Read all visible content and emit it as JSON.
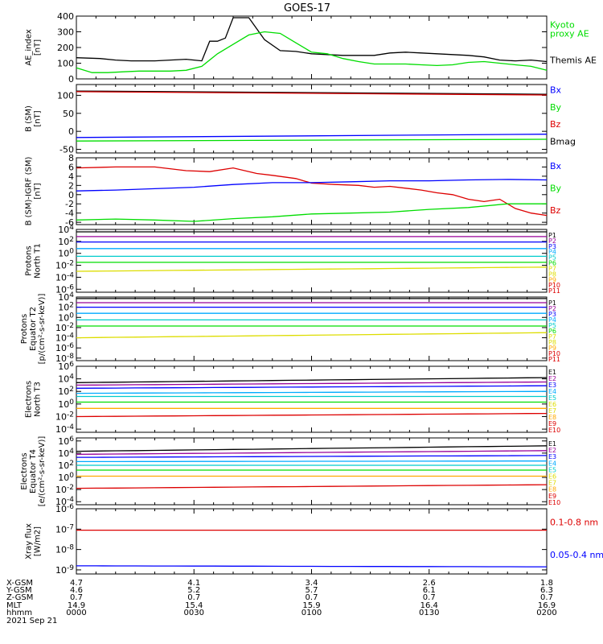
{
  "title": "GOES-17",
  "colors": {
    "black": "#000000",
    "blue": "#0000ff",
    "green": "#00dd00",
    "red": "#dd0000",
    "orange": "#ffaa00",
    "yellow": "#dddd00",
    "cyan": "#00cccc",
    "lightblue": "#00aaff",
    "purple": "#990099"
  },
  "chart_data": [
    {
      "type": "line",
      "panel": "ae",
      "ylabel": "AE_index\n[nT]",
      "yticks": [
        "400",
        "300",
        "200",
        "100",
        "0"
      ],
      "ylim": [
        0,
        400
      ],
      "legend": [
        {
          "text": "Kyoto\nproxy AE",
          "color": "#00dd00"
        },
        {
          "text": "Themis AE",
          "color": "#000000"
        }
      ],
      "series": [
        {
          "name": "Themis AE",
          "color": "#000000",
          "x": [
            0,
            6,
            10,
            14,
            20,
            24,
            28,
            30,
            32,
            34,
            36,
            38,
            40,
            44,
            48,
            52,
            56,
            60,
            64,
            68,
            72,
            76,
            80,
            84,
            88,
            92,
            96,
            100,
            104,
            108,
            112,
            116,
            120
          ],
          "values": [
            135,
            130,
            120,
            115,
            115,
            120,
            125,
            120,
            115,
            240,
            240,
            260,
            390,
            390,
            250,
            180,
            175,
            160,
            155,
            150,
            150,
            150,
            165,
            170,
            165,
            160,
            155,
            150,
            140,
            120,
            115,
            120,
            110
          ]
        },
        {
          "name": "Kyoto proxy AE",
          "color": "#00dd00",
          "x": [
            0,
            4,
            8,
            12,
            16,
            20,
            24,
            28,
            32,
            36,
            40,
            44,
            48,
            52,
            56,
            60,
            64,
            68,
            72,
            76,
            80,
            84,
            88,
            92,
            96,
            100,
            104,
            108,
            112,
            116,
            120
          ],
          "values": [
            70,
            40,
            40,
            45,
            50,
            50,
            50,
            55,
            80,
            160,
            220,
            280,
            300,
            290,
            230,
            170,
            160,
            130,
            110,
            95,
            95,
            95,
            90,
            85,
            90,
            105,
            110,
            100,
            90,
            80,
            55
          ]
        }
      ]
    },
    {
      "type": "line",
      "panel": "bsm",
      "ylabel": "B (SM)\n[nT]",
      "yticks": [
        "100",
        "50",
        "0",
        "-50"
      ],
      "ylim": [
        -60,
        130
      ],
      "legend": [
        {
          "text": "Bx",
          "color": "#0000ff"
        },
        {
          "text": "By",
          "color": "#00dd00"
        },
        {
          "text": "Bz",
          "color": "#dd0000"
        },
        {
          "text": "Bmag",
          "color": "#000000"
        }
      ],
      "series": [
        {
          "name": "Bmag",
          "color": "#000000",
          "x": [
            0,
            120
          ],
          "values": [
            112,
            103
          ]
        },
        {
          "name": "Bz",
          "color": "#dd0000",
          "x": [
            0,
            120
          ],
          "values": [
            110,
            101
          ]
        },
        {
          "name": "Bx",
          "color": "#0000ff",
          "x": [
            0,
            120
          ],
          "values": [
            -17,
            -8
          ]
        },
        {
          "name": "By",
          "color": "#00dd00",
          "x": [
            0,
            120
          ],
          "values": [
            -27,
            -22
          ]
        }
      ]
    },
    {
      "type": "line",
      "panel": "bigrf",
      "ylabel": "B (SM)-IGRF (SM)\n[nT]",
      "yticks": [
        "8",
        "6",
        "4",
        "2",
        "0",
        "-2",
        "-4",
        "-6"
      ],
      "ylim": [
        -6.5,
        8
      ],
      "legend": [
        {
          "text": "Bx",
          "color": "#0000ff"
        },
        {
          "text": "By",
          "color": "#00dd00"
        },
        {
          "text": "Bz",
          "color": "#dd0000"
        }
      ],
      "series": [
        {
          "name": "Bz",
          "color": "#dd0000",
          "x": [
            0,
            10,
            20,
            28,
            34,
            40,
            46,
            50,
            56,
            60,
            66,
            72,
            76,
            80,
            84,
            88,
            92,
            96,
            100,
            104,
            108,
            112,
            116,
            120
          ],
          "values": [
            5.8,
            6.0,
            6.0,
            5.2,
            5.0,
            5.8,
            4.6,
            4.2,
            3.5,
            2.5,
            2.2,
            2.0,
            1.6,
            1.8,
            1.4,
            1.0,
            0.4,
            0.0,
            -1.0,
            -1.5,
            -1.0,
            -3.0,
            -4.0,
            -4.5
          ]
        },
        {
          "name": "Bx",
          "color": "#0000ff",
          "x": [
            0,
            10,
            20,
            30,
            40,
            50,
            60,
            70,
            80,
            90,
            100,
            110,
            120
          ],
          "values": [
            0.8,
            1.0,
            1.3,
            1.6,
            2.2,
            2.6,
            2.6,
            2.8,
            3.0,
            3.0,
            3.2,
            3.3,
            3.2
          ]
        },
        {
          "name": "By",
          "color": "#00dd00",
          "x": [
            0,
            10,
            20,
            30,
            40,
            50,
            60,
            70,
            80,
            90,
            100,
            110,
            120
          ],
          "values": [
            -5.5,
            -5.3,
            -5.5,
            -5.8,
            -5.2,
            -4.8,
            -4.2,
            -4.0,
            -3.8,
            -3.2,
            -2.8,
            -2.0,
            -2.0
          ]
        }
      ]
    },
    {
      "type": "line",
      "panel": "protons_t1",
      "ylabel": "Protons\nNorth T1",
      "yticks": [
        "10^4",
        "10^2",
        "10^0",
        "10^-2",
        "10^-4",
        "10^-6"
      ],
      "ylog": true,
      "ylim": [
        -6.5,
        4
      ],
      "legend": [
        {
          "text": "P1",
          "color": "#000000"
        },
        {
          "text": "P2",
          "color": "#990099"
        },
        {
          "text": "P3",
          "color": "#0000ff"
        },
        {
          "text": "P4",
          "color": "#00aaff"
        },
        {
          "text": "P5",
          "color": "#00cccc"
        },
        {
          "text": "P6",
          "color": "#00dd00"
        },
        {
          "text": "P7",
          "color": "#dddd00"
        },
        {
          "text": "P8",
          "color": "#dddd00"
        },
        {
          "text": "P9",
          "color": "#ffaa00"
        },
        {
          "text": "P10",
          "color": "#dd0000"
        },
        {
          "text": "P11",
          "color": "#dd0000"
        }
      ],
      "series": [
        {
          "name": "P1",
          "color": "#000000",
          "log_values": [
            3.6,
            3.6
          ]
        },
        {
          "name": "P2",
          "color": "#990099",
          "log_values": [
            2.8,
            2.8
          ]
        },
        {
          "name": "P3",
          "color": "#0000ff",
          "log_values": [
            1.9,
            1.9
          ]
        },
        {
          "name": "P4",
          "color": "#00aaff",
          "log_values": [
            0.8,
            0.8
          ]
        },
        {
          "name": "P5",
          "color": "#00cccc",
          "log_values": [
            -0.5,
            -0.5
          ]
        },
        {
          "name": "P6",
          "color": "#00dd00",
          "log_values": [
            -1.5,
            -1.5
          ]
        },
        {
          "name": "P7",
          "color": "#dddd00",
          "log_values": [
            -3.0,
            -2.3
          ]
        }
      ]
    },
    {
      "type": "line",
      "panel": "protons_t2",
      "ylabel": "Protons\nEquator T2\n[p/(cm²-s-sr-keV)]",
      "yticks": [
        "10^4",
        "10^2",
        "10^0",
        "10^-2",
        "10^-4",
        "10^-6",
        "10^-8"
      ],
      "ylog": true,
      "ylim": [
        -8.5,
        4
      ],
      "legend": [
        {
          "text": "P1",
          "color": "#000000"
        },
        {
          "text": "P2",
          "color": "#990099"
        },
        {
          "text": "P3",
          "color": "#0000ff"
        },
        {
          "text": "P4",
          "color": "#00aaff"
        },
        {
          "text": "P5",
          "color": "#00cccc"
        },
        {
          "text": "P6",
          "color": "#00dd00"
        },
        {
          "text": "P7",
          "color": "#dddd00"
        },
        {
          "text": "P8",
          "color": "#dddd00"
        },
        {
          "text": "P9",
          "color": "#ffaa00"
        },
        {
          "text": "P10",
          "color": "#dd0000"
        },
        {
          "text": "P11",
          "color": "#dd0000"
        }
      ],
      "series": [
        {
          "name": "P1",
          "color": "#000000",
          "log_values": [
            3.7,
            3.7
          ]
        },
        {
          "name": "P2",
          "color": "#990099",
          "log_values": [
            2.9,
            2.9
          ]
        },
        {
          "name": "P3",
          "color": "#0000ff",
          "log_values": [
            2.0,
            2.0
          ]
        },
        {
          "name": "P4",
          "color": "#00aaff",
          "log_values": [
            0.8,
            0.8
          ]
        },
        {
          "name": "P5",
          "color": "#00cccc",
          "log_values": [
            -0.5,
            -0.5
          ]
        },
        {
          "name": "P6",
          "color": "#00dd00",
          "log_values": [
            -1.7,
            -1.7
          ]
        },
        {
          "name": "P7",
          "color": "#dddd00",
          "log_values": [
            -4.0,
            -3.0
          ]
        }
      ]
    },
    {
      "type": "line",
      "panel": "electrons_t3",
      "ylabel": "Electrons\nNorth T3",
      "yticks": [
        "10^6",
        "10^4",
        "10^2",
        "10^0",
        "10^-2",
        "10^-4"
      ],
      "ylog": true,
      "ylim": [
        -4.5,
        6
      ],
      "legend": [
        {
          "text": "E1",
          "color": "#000000"
        },
        {
          "text": "E2",
          "color": "#990099"
        },
        {
          "text": "E3",
          "color": "#0000ff"
        },
        {
          "text": "E4",
          "color": "#00aaff"
        },
        {
          "text": "E5",
          "color": "#00cccc"
        },
        {
          "text": "E6",
          "color": "#dddd00"
        },
        {
          "text": "E7",
          "color": "#dddd00"
        },
        {
          "text": "E8",
          "color": "#ffaa00"
        },
        {
          "text": "E9",
          "color": "#dd0000"
        },
        {
          "text": "E10",
          "color": "#dd0000"
        }
      ],
      "series": [
        {
          "name": "E1",
          "color": "#000000",
          "log_values": [
            3.4,
            4.2
          ]
        },
        {
          "name": "E2",
          "color": "#990099",
          "log_values": [
            3.0,
            3.5
          ]
        },
        {
          "name": "E3",
          "color": "#0000ff",
          "log_values": [
            2.5,
            2.9
          ]
        },
        {
          "name": "E4",
          "color": "#00aaff",
          "log_values": [
            1.7,
            2.0
          ]
        },
        {
          "name": "E5",
          "color": "#00cccc",
          "log_values": [
            1.2,
            1.2
          ]
        },
        {
          "name": "E6",
          "color": "#00dd00",
          "log_values": [
            0.3,
            0.3
          ]
        },
        {
          "name": "E7",
          "color": "#ffaa00",
          "log_values": [
            -0.7,
            -0.7
          ]
        },
        {
          "name": "E8",
          "color": "#dd0000",
          "log_values": [
            -2.0,
            -1.5
          ]
        }
      ]
    },
    {
      "type": "line",
      "panel": "electrons_t4",
      "ylabel": "Electrons\nEquator T4\n[e/(cm²-s-sr-keV)]",
      "yticks": [
        "10^6",
        "10^4",
        "10^2",
        "10^0",
        "10^-2",
        "10^-4"
      ],
      "ylog": true,
      "ylim": [
        -4.5,
        6.5
      ],
      "legend": [
        {
          "text": "E1",
          "color": "#000000"
        },
        {
          "text": "E2",
          "color": "#990099"
        },
        {
          "text": "E3",
          "color": "#0000ff"
        },
        {
          "text": "E4",
          "color": "#00aaff"
        },
        {
          "text": "E5",
          "color": "#00cccc"
        },
        {
          "text": "E6",
          "color": "#dddd00"
        },
        {
          "text": "E7",
          "color": "#dddd00"
        },
        {
          "text": "E8",
          "color": "#ffaa00"
        },
        {
          "text": "E9",
          "color": "#dd0000"
        },
        {
          "text": "E10",
          "color": "#dd0000"
        }
      ],
      "series": [
        {
          "name": "E1",
          "color": "#000000",
          "log_values": [
            4.3,
            5.2
          ]
        },
        {
          "name": "E2",
          "color": "#990099",
          "log_values": [
            3.8,
            4.4
          ]
        },
        {
          "name": "E3",
          "color": "#0000ff",
          "log_values": [
            3.3,
            3.6
          ]
        },
        {
          "name": "E4",
          "color": "#00aaff",
          "log_values": [
            2.6,
            2.7
          ]
        },
        {
          "name": "E5",
          "color": "#00cccc",
          "log_values": [
            2.0,
            2.0
          ]
        },
        {
          "name": "E6",
          "color": "#00dd00",
          "log_values": [
            1.2,
            1.2
          ]
        },
        {
          "name": "E7",
          "color": "#ffaa00",
          "log_values": [
            0.2,
            0.2
          ]
        },
        {
          "name": "E8",
          "color": "#dd0000",
          "log_values": [
            -1.8,
            -1.2
          ]
        }
      ]
    },
    {
      "type": "line",
      "panel": "xray",
      "ylabel": "Xray flux\n[W/m2]",
      "yticks": [
        "10^-6",
        "10^-7",
        "10^-8",
        "10^-9"
      ],
      "ylog": true,
      "ylim": [
        -9.2,
        -6
      ],
      "legend": [
        {
          "text": "0.1-0.8 nm",
          "color": "#dd0000"
        },
        {
          "text": "0.05-0.4 nm",
          "color": "#0000ff"
        }
      ],
      "series": [
        {
          "name": "0.1-0.8 nm",
          "color": "#dd0000",
          "log_values": [
            -7.05,
            -7.05
          ]
        },
        {
          "name": "0.05-0.4 nm",
          "color": "#0000ff",
          "log_values": [
            -8.8,
            -8.85
          ]
        }
      ]
    }
  ],
  "xaxis": {
    "row_labels": [
      "X-GSM",
      "Y-GSM",
      "Z-GSM",
      "MLT",
      "hhmm"
    ],
    "date": "2021 Sep 21",
    "columns": [
      {
        "values": [
          "4.7",
          "4.6",
          "0.7",
          "14.9",
          "0000"
        ]
      },
      {
        "values": [
          "4.1",
          "5.2",
          "0.7",
          "15.4",
          "0030"
        ]
      },
      {
        "values": [
          "3.4",
          "5.7",
          "0.7",
          "15.9",
          "0100"
        ]
      },
      {
        "values": [
          "2.6",
          "6.1",
          "0.7",
          "16.4",
          "0130"
        ]
      },
      {
        "values": [
          "1.8",
          "6.3",
          "0.7",
          "16.9",
          "0200"
        ]
      }
    ]
  }
}
